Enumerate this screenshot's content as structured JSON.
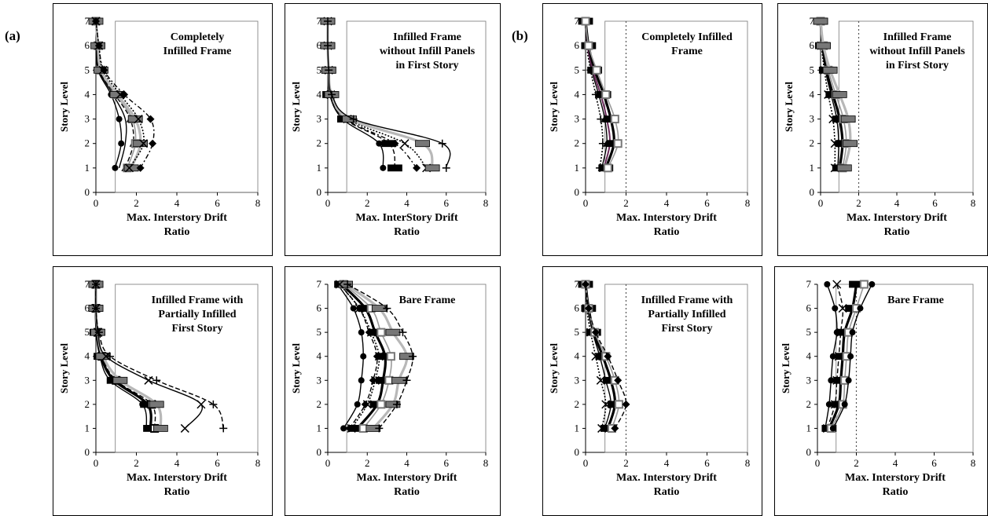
{
  "panel_labels": [
    "(a)",
    "(b)"
  ],
  "chart_data": [
    {
      "type": "line",
      "group": "(a)",
      "title": [
        "Completely",
        "Infilled Frame"
      ],
      "xlabel": [
        "Max. Interstory Drift",
        "Ratio"
      ],
      "ylabel": "Story Level",
      "xlim": [
        0,
        8
      ],
      "ylim": [
        0,
        7
      ],
      "xticks": [
        0,
        2,
        4,
        6,
        8
      ],
      "yticks": [
        0,
        1,
        2,
        3,
        4,
        5,
        6,
        7
      ],
      "grid": false,
      "legend": "none",
      "dashed_limit": null,
      "y": [
        1,
        2,
        3,
        4,
        5,
        6,
        7
      ],
      "series": [
        {
          "values": [
            0.95,
            1.25,
            1.15,
            0.75,
            0.1,
            0.05,
            0.0
          ],
          "style": "solid-black",
          "marker": "circle"
        },
        {
          "values": [
            1.15,
            1.45,
            1.45,
            0.85,
            0.15,
            0.05,
            0.0
          ],
          "style": "solid-black",
          "marker": "none"
        },
        {
          "values": [
            1.45,
            1.85,
            1.7,
            0.95,
            0.2,
            0.1,
            0.0
          ],
          "style": "dash-black",
          "marker": "triangle"
        },
        {
          "values": [
            1.55,
            1.95,
            1.8,
            1.0,
            0.25,
            0.1,
            0.0
          ],
          "style": "solid-gray",
          "marker": "square"
        },
        {
          "values": [
            1.75,
            2.2,
            1.95,
            1.05,
            0.25,
            0.1,
            0.0
          ],
          "style": "thick-gray",
          "marker": "bar"
        },
        {
          "values": [
            1.65,
            2.35,
            2.1,
            1.2,
            0.35,
            0.15,
            0.0
          ],
          "style": "dot-black",
          "marker": "cross"
        },
        {
          "values": [
            2.2,
            2.8,
            2.7,
            1.4,
            0.4,
            0.15,
            0.0
          ],
          "style": "dashdot-black",
          "marker": "diamond"
        }
      ]
    },
    {
      "type": "line",
      "group": "(a)",
      "title": [
        "Infilled Frame",
        "without Infill Panels",
        "in First Story"
      ],
      "xlabel": [
        "Max. InterStory Drift",
        "Ratio"
      ],
      "ylabel": "Story Level",
      "xlim": [
        0,
        8
      ],
      "ylim": [
        0,
        7
      ],
      "xticks": [
        0,
        2,
        4,
        6,
        8
      ],
      "yticks": [
        0,
        1,
        2,
        3,
        4,
        5,
        6,
        7
      ],
      "grid": false,
      "legend": "none",
      "dashed_limit": null,
      "y": [
        1,
        2,
        3,
        4,
        5,
        6,
        7
      ],
      "series": [
        {
          "values": [
            2.8,
            2.6,
            0.75,
            0.1,
            0.05,
            0.0,
            0.0
          ],
          "style": "solid-black",
          "marker": "circle"
        },
        {
          "values": [
            3.4,
            3.1,
            0.85,
            0.1,
            0.05,
            0.0,
            0.0
          ],
          "style": "dash-black",
          "marker": "bar"
        },
        {
          "values": [
            4.5,
            3.4,
            0.9,
            0.15,
            0.05,
            0.0,
            0.0
          ],
          "style": "dashdot-black",
          "marker": "diamond"
        },
        {
          "values": [
            5.0,
            3.9,
            1.0,
            0.15,
            0.05,
            0.0,
            0.0
          ],
          "style": "dot-black",
          "marker": "cross"
        },
        {
          "values": [
            5.3,
            4.8,
            1.1,
            0.2,
            0.05,
            0.0,
            0.0
          ],
          "style": "thick-gray",
          "marker": "bar"
        },
        {
          "values": [
            6.0,
            5.8,
            1.3,
            0.2,
            0.05,
            0.0,
            0.0
          ],
          "style": "solid-black",
          "marker": "plus"
        }
      ]
    },
    {
      "type": "line",
      "group": "(a)",
      "title": [
        "Infilled Frame with",
        "Partially Infilled",
        "First Story"
      ],
      "xlabel": [
        "Max. Interstory Drift",
        "Ratio"
      ],
      "ylabel": "Story Level",
      "xlim": [
        0,
        8
      ],
      "ylim": [
        0,
        7
      ],
      "xticks": [
        0,
        2,
        4,
        6,
        8
      ],
      "yticks": [
        0,
        1,
        2,
        3,
        4,
        5,
        6,
        7
      ],
      "grid": false,
      "legend": "none",
      "dashed_limit": null,
      "y": [
        1,
        2,
        3,
        4,
        5,
        6,
        7
      ],
      "series": [
        {
          "values": [
            2.5,
            2.3,
            0.7,
            0.2,
            0.05,
            0.0,
            0.0
          ],
          "style": "solid-black",
          "marker": "circle"
        },
        {
          "values": [
            2.7,
            2.55,
            0.9,
            0.25,
            0.05,
            0.0,
            0.0
          ],
          "style": "thick-black",
          "marker": "bar"
        },
        {
          "values": [
            2.9,
            2.75,
            1.0,
            0.3,
            0.1,
            0.0,
            0.0
          ],
          "style": "dash-black",
          "marker": "square"
        },
        {
          "values": [
            3.2,
            3.0,
            1.2,
            0.35,
            0.1,
            0.0,
            0.0
          ],
          "style": "thick-gray",
          "marker": "bar"
        },
        {
          "values": [
            4.4,
            5.2,
            2.6,
            0.5,
            0.1,
            0.0,
            0.0
          ],
          "style": "solid-black",
          "marker": "cross"
        },
        {
          "values": [
            6.3,
            5.8,
            3.0,
            0.7,
            0.15,
            0.0,
            0.0
          ],
          "style": "dash-black",
          "marker": "plus"
        }
      ]
    },
    {
      "type": "line",
      "group": "(a)",
      "title": [
        "Bare Frame"
      ],
      "xlabel": [
        "Max. Interstory Drift",
        "Ratio"
      ],
      "ylabel": "Story Level",
      "xlim": [
        0,
        8
      ],
      "ylim": [
        0,
        7
      ],
      "xticks": [
        0,
        2,
        4,
        6,
        8
      ],
      "yticks": [
        0,
        1,
        2,
        3,
        4,
        5,
        6,
        7
      ],
      "grid": false,
      "legend": "none",
      "dashed_limit": null,
      "y": [
        1,
        2,
        3,
        4,
        5,
        6,
        7
      ],
      "series": [
        {
          "values": [
            0.8,
            1.5,
            1.7,
            1.8,
            1.7,
            1.3,
            0.5
          ],
          "style": "solid-black",
          "marker": "circle"
        },
        {
          "values": [
            1.1,
            1.9,
            2.3,
            2.5,
            2.1,
            1.6,
            0.6
          ],
          "style": "dash-black",
          "marker": "diamond"
        },
        {
          "values": [
            1.5,
            2.5,
            2.8,
            2.9,
            2.4,
            1.9,
            0.7
          ],
          "style": "thick-black",
          "marker": "bar"
        },
        {
          "values": [
            1.8,
            2.7,
            3.1,
            3.2,
            2.7,
            2.2,
            0.8
          ],
          "style": "solid-gray",
          "marker": "square"
        },
        {
          "values": [
            2.3,
            3.3,
            3.6,
            4.0,
            3.3,
            2.6,
            0.9
          ],
          "style": "thick-gray",
          "marker": "bar"
        },
        {
          "values": [
            1.2,
            2.0,
            2.4,
            2.6,
            2.2,
            1.6,
            0.6
          ],
          "style": "dot-black",
          "marker": "cross"
        },
        {
          "values": [
            2.6,
            3.5,
            4.0,
            4.3,
            3.8,
            3.0,
            1.0
          ],
          "style": "dash-black",
          "marker": "plus"
        }
      ]
    },
    {
      "type": "line",
      "group": "(b)",
      "title": [
        "Completely Infilled",
        "Frame"
      ],
      "xlabel": [
        "Max. Interstory Drift",
        "Ratio"
      ],
      "ylabel": "Story Level",
      "xlim": [
        0,
        8
      ],
      "ylim": [
        0,
        7
      ],
      "xticks": [
        0,
        2,
        4,
        6,
        8
      ],
      "yticks": [
        0,
        1,
        2,
        3,
        4,
        5,
        6,
        7
      ],
      "grid": false,
      "legend": "none",
      "dashed_limit": 2,
      "y": [
        1,
        2,
        3,
        4,
        5,
        6,
        7
      ],
      "series": [
        {
          "values": [
            0.7,
            0.85,
            0.75,
            0.5,
            0.25,
            0.05,
            0.0
          ],
          "style": "dot-black",
          "marker": "plus"
        },
        {
          "values": [
            0.8,
            1.05,
            0.95,
            0.65,
            0.3,
            0.1,
            0.0
          ],
          "style": "solid-black",
          "marker": "triangle"
        },
        {
          "values": [
            0.9,
            1.2,
            1.05,
            0.75,
            0.35,
            0.1,
            0.0
          ],
          "style": "solid-purple",
          "marker": "none"
        },
        {
          "values": [
            1.0,
            1.4,
            1.25,
            0.9,
            0.45,
            0.15,
            0.0
          ],
          "style": "thick-black",
          "marker": "bar"
        },
        {
          "values": [
            1.1,
            1.6,
            1.45,
            1.0,
            0.55,
            0.15,
            0.0
          ],
          "style": "solid-gray",
          "marker": "square"
        }
      ]
    },
    {
      "type": "line",
      "group": "(b)",
      "title": [
        "Infilled Frame",
        "without Infill Panels",
        "in First Story"
      ],
      "xlabel": [
        "Max. Interstory Drift",
        "Ratio"
      ],
      "ylabel": "Story Level",
      "xlim": [
        0,
        8
      ],
      "ylim": [
        0,
        7
      ],
      "xticks": [
        0,
        2,
        4,
        6,
        8
      ],
      "yticks": [
        0,
        1,
        2,
        3,
        4,
        5,
        6,
        7
      ],
      "grid": false,
      "legend": "none",
      "dashed_limit": 2,
      "y": [
        1,
        2,
        3,
        4,
        5,
        6,
        7
      ],
      "series": [
        {
          "values": [
            0.75,
            0.75,
            0.65,
            0.4,
            0.2,
            0.05,
            0.0
          ],
          "style": "dot-black",
          "marker": "cross"
        },
        {
          "values": [
            0.9,
            0.95,
            0.85,
            0.55,
            0.25,
            0.1,
            0.0
          ],
          "style": "solid-black",
          "marker": "circle"
        },
        {
          "values": [
            1.0,
            1.15,
            1.0,
            0.65,
            0.3,
            0.1,
            0.0
          ],
          "style": "thick-black",
          "marker": "bar"
        },
        {
          "values": [
            1.15,
            1.35,
            1.2,
            0.8,
            0.4,
            0.15,
            0.0
          ],
          "style": "solid-gray",
          "marker": "square"
        },
        {
          "values": [
            1.25,
            1.55,
            1.45,
            1.0,
            0.5,
            0.15,
            0.0
          ],
          "style": "thick-gray",
          "marker": "bar"
        }
      ]
    },
    {
      "type": "line",
      "group": "(b)",
      "title": [
        "Infilled Frame with",
        "Partially Infilled",
        "First Story"
      ],
      "xlabel": [
        "Max. Interstory Drift",
        "Ratio"
      ],
      "ylabel": "Story Level",
      "xlim": [
        0,
        8
      ],
      "ylim": [
        0,
        7
      ],
      "xticks": [
        0,
        2,
        4,
        6,
        8
      ],
      "yticks": [
        0,
        1,
        2,
        3,
        4,
        5,
        6,
        7
      ],
      "grid": false,
      "legend": "none",
      "dashed_limit": 2,
      "y": [
        1,
        2,
        3,
        4,
        5,
        6,
        7
      ],
      "series": [
        {
          "values": [
            0.8,
            1.0,
            0.75,
            0.5,
            0.25,
            0.05,
            0.0
          ],
          "style": "dot-black",
          "marker": "cross"
        },
        {
          "values": [
            0.95,
            1.25,
            1.0,
            0.7,
            0.35,
            0.1,
            0.0
          ],
          "style": "solid-black",
          "marker": "circle"
        },
        {
          "values": [
            1.1,
            1.45,
            1.25,
            0.85,
            0.4,
            0.15,
            0.0
          ],
          "style": "thick-black",
          "marker": "bar"
        },
        {
          "values": [
            1.3,
            1.65,
            1.45,
            1.0,
            0.45,
            0.15,
            0.0
          ],
          "style": "solid-gray",
          "marker": "square"
        },
        {
          "values": [
            1.45,
            2.0,
            1.6,
            1.1,
            0.5,
            0.15,
            0.0
          ],
          "style": "dash-black",
          "marker": "diamond"
        }
      ]
    },
    {
      "type": "line",
      "group": "(b)",
      "title": [
        "Bare Frame"
      ],
      "xlabel": [
        "Max. Interstory Drift",
        "Ratio"
      ],
      "ylabel": "Story Level",
      "xlim": [
        0,
        8
      ],
      "ylim": [
        0,
        7
      ],
      "xticks": [
        0,
        2,
        4,
        6,
        8
      ],
      "yticks": [
        0,
        1,
        2,
        3,
        4,
        5,
        6,
        7
      ],
      "grid": false,
      "legend": "none",
      "dashed_limit": 2,
      "y": [
        1,
        2,
        3,
        4,
        5,
        6,
        7
      ],
      "series": [
        {
          "values": [
            0.4,
            0.6,
            0.7,
            0.8,
            1.0,
            0.9,
            0.5
          ],
          "style": "solid-black",
          "marker": "circle"
        },
        {
          "values": [
            0.5,
            0.9,
            1.0,
            1.1,
            1.2,
            1.3,
            1.0
          ],
          "style": "dash-black",
          "marker": "cross"
        },
        {
          "values": [
            0.6,
            1.1,
            1.2,
            1.3,
            1.4,
            1.8,
            2.0
          ],
          "style": "thick-black",
          "marker": "bar"
        },
        {
          "values": [
            0.7,
            1.3,
            1.4,
            1.5,
            1.6,
            2.0,
            2.4
          ],
          "style": "solid-gray",
          "marker": "square"
        },
        {
          "values": [
            0.8,
            1.4,
            1.6,
            1.7,
            1.8,
            2.2,
            2.8
          ],
          "style": "solid-black",
          "marker": "circle"
        }
      ]
    }
  ]
}
